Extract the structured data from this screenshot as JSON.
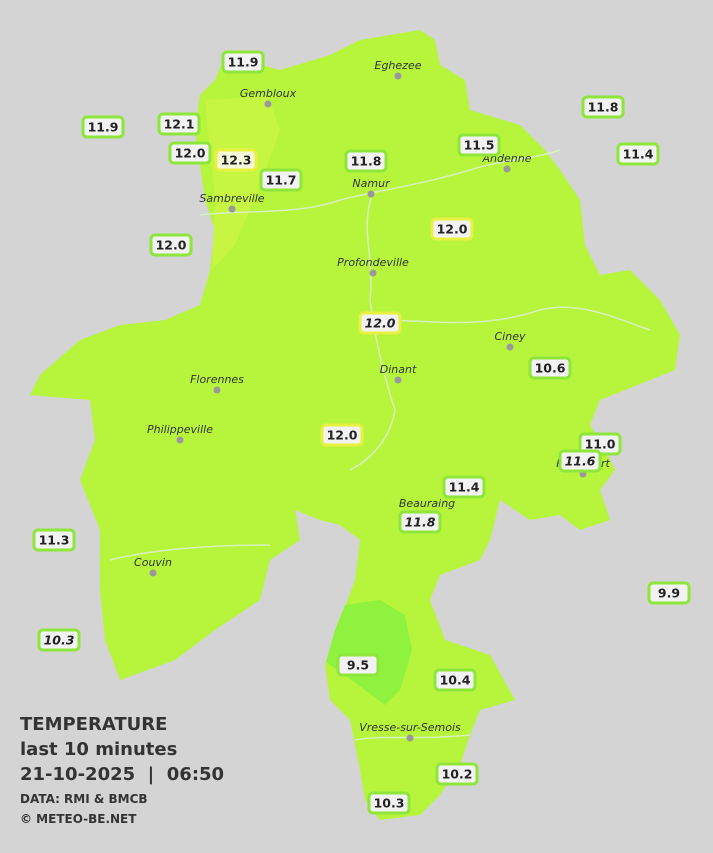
{
  "legend": {
    "title": "TEMPERATURE",
    "subtitle": "last 10 minutes",
    "datetime": "21-10-2025  |  06:50",
    "source": "DATA: RMI & BMCB",
    "copyright": "© METEO-BE.NET"
  },
  "towns": [
    "Eghezee",
    "Gembloux",
    "Andenne",
    "Namur",
    "Sambreville",
    "Profondeville",
    "Ciney",
    "Dinant",
    "Florennes",
    "Philippeville",
    "Beauraing",
    "Rochefort",
    "Couvin",
    "Vresse-sur-Semois"
  ],
  "stations": [
    {
      "value": "11.9"
    },
    {
      "value": "12.1"
    },
    {
      "value": "11.9"
    },
    {
      "value": "12.0"
    },
    {
      "value": "12.3"
    },
    {
      "value": "11.7"
    },
    {
      "value": "11.8"
    },
    {
      "value": "11.5"
    },
    {
      "value": "11.8"
    },
    {
      "value": "11.4"
    },
    {
      "value": "12.0"
    },
    {
      "value": "12.0"
    },
    {
      "value": "12.0",
      "italic": true
    },
    {
      "value": "10.6"
    },
    {
      "value": "11.0"
    },
    {
      "value": "11.6",
      "italic": true
    },
    {
      "value": "12.0"
    },
    {
      "value": "11.4"
    },
    {
      "value": "11.8",
      "italic": true
    },
    {
      "value": "11.3"
    },
    {
      "value": "9.9"
    },
    {
      "value": "10.3",
      "italic": true
    },
    {
      "value": "9.5"
    },
    {
      "value": "10.4"
    },
    {
      "value": "10.2"
    },
    {
      "value": "10.3"
    }
  ]
}
